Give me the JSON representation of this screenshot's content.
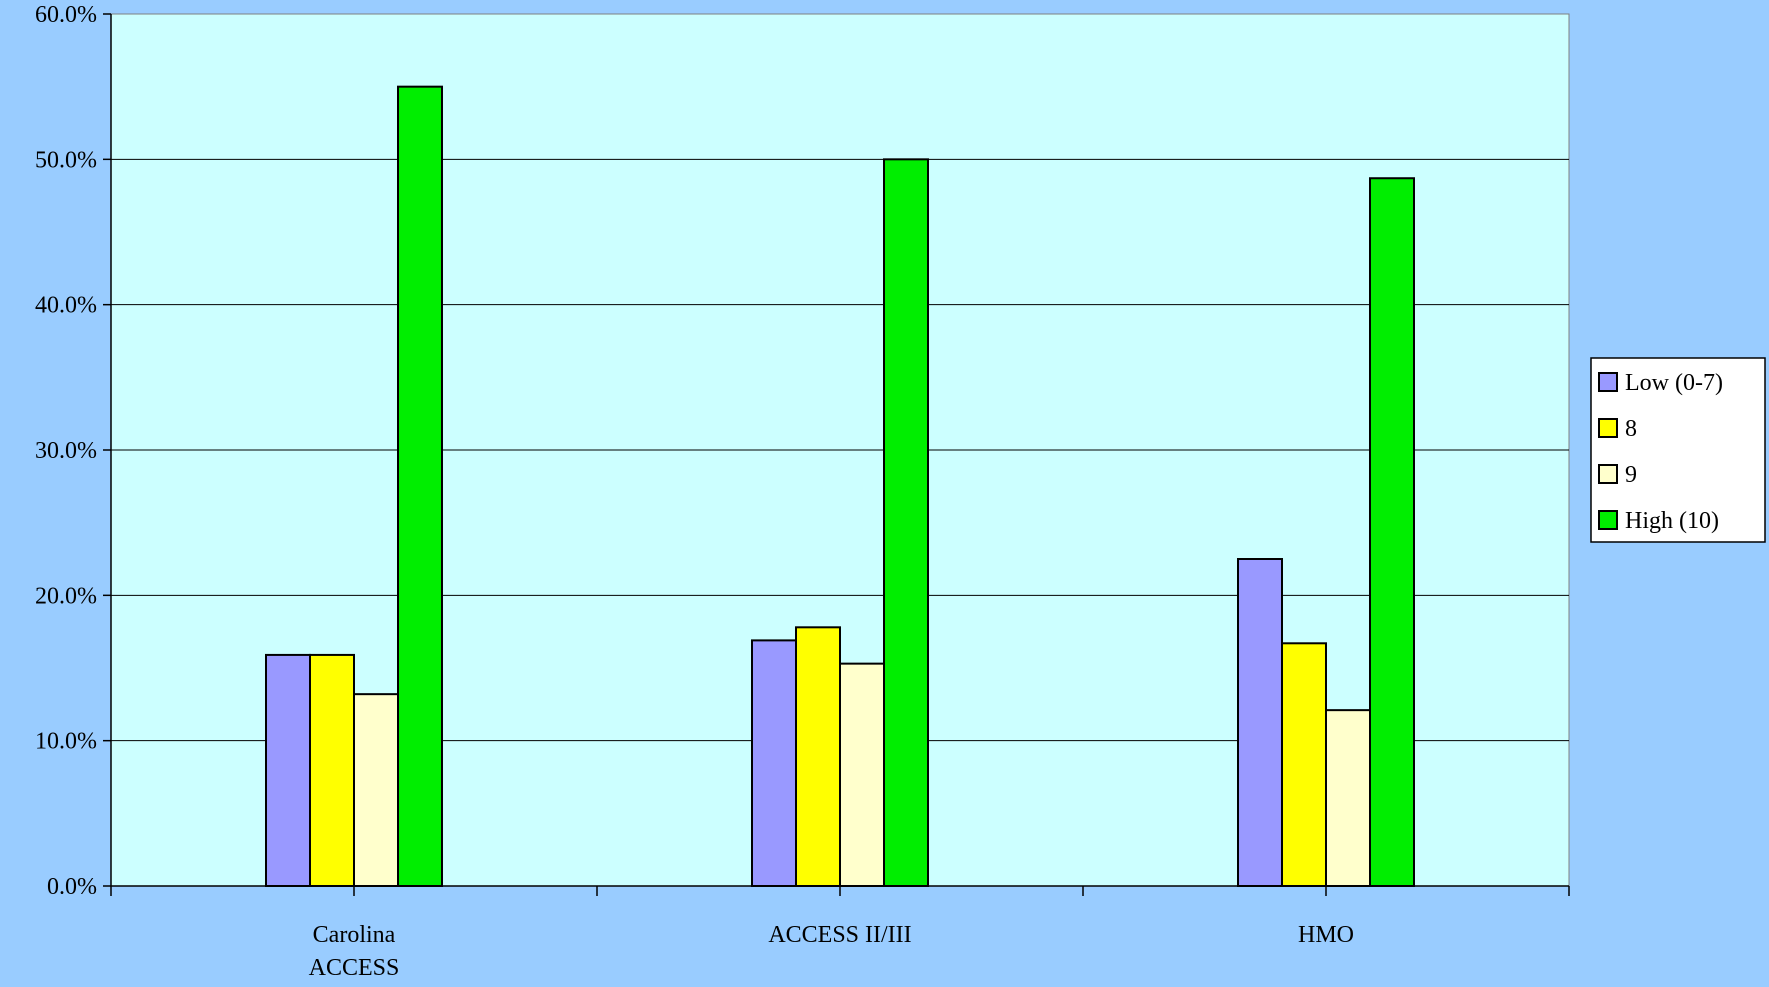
{
  "chart_data": {
    "type": "bar",
    "title": "",
    "xlabel": "",
    "ylabel": "",
    "categories": [
      [
        "Carolina",
        "ACCESS"
      ],
      [
        "ACCESS II/III"
      ],
      [
        "HMO"
      ]
    ],
    "series": [
      {
        "name": "Low (0-7)",
        "color": "#9999ff",
        "values": [
          15.9,
          16.9,
          22.5
        ]
      },
      {
        "name": "8",
        "color": "#ffff00",
        "values": [
          15.9,
          17.8,
          16.7
        ]
      },
      {
        "name": "9",
        "color": "#ffffcc",
        "values": [
          13.2,
          15.3,
          12.1
        ]
      },
      {
        "name": "High (10)",
        "color": "#00ee00",
        "values": [
          55.0,
          50.0,
          48.7
        ]
      }
    ],
    "ylim": [
      0,
      60
    ],
    "yticks": [
      "0.0%",
      "10.0%",
      "20.0%",
      "30.0%",
      "40.0%",
      "50.0%",
      "60.0%"
    ],
    "grid": true,
    "legend_position": "right",
    "plot_background": "#ccffff",
    "page_background": "#99ccff"
  }
}
